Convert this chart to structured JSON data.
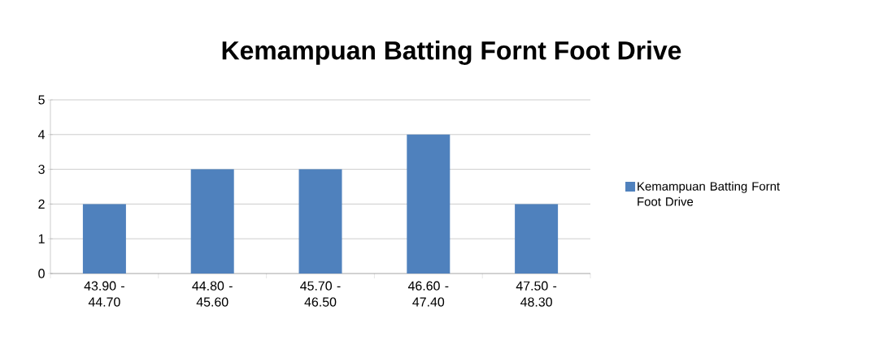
{
  "chart_data": {
    "type": "bar",
    "title": "Kemampuan Batting Fornt Foot Drive",
    "categories": [
      "43.90 - 44.70",
      "44.80 - 45.60",
      "45.70 - 46.50",
      "46.60 - 47.40",
      "47.50 - 48.30"
    ],
    "series": [
      {
        "name": "Kemampuan Batting Fornt Foot Drive",
        "color": "#4f81bd",
        "values": [
          2,
          3,
          3,
          4,
          2
        ]
      }
    ],
    "ylim": [
      0,
      5
    ],
    "yticks": [
      0,
      1,
      2,
      3,
      4,
      5
    ],
    "grid": "y",
    "legend": "right"
  }
}
